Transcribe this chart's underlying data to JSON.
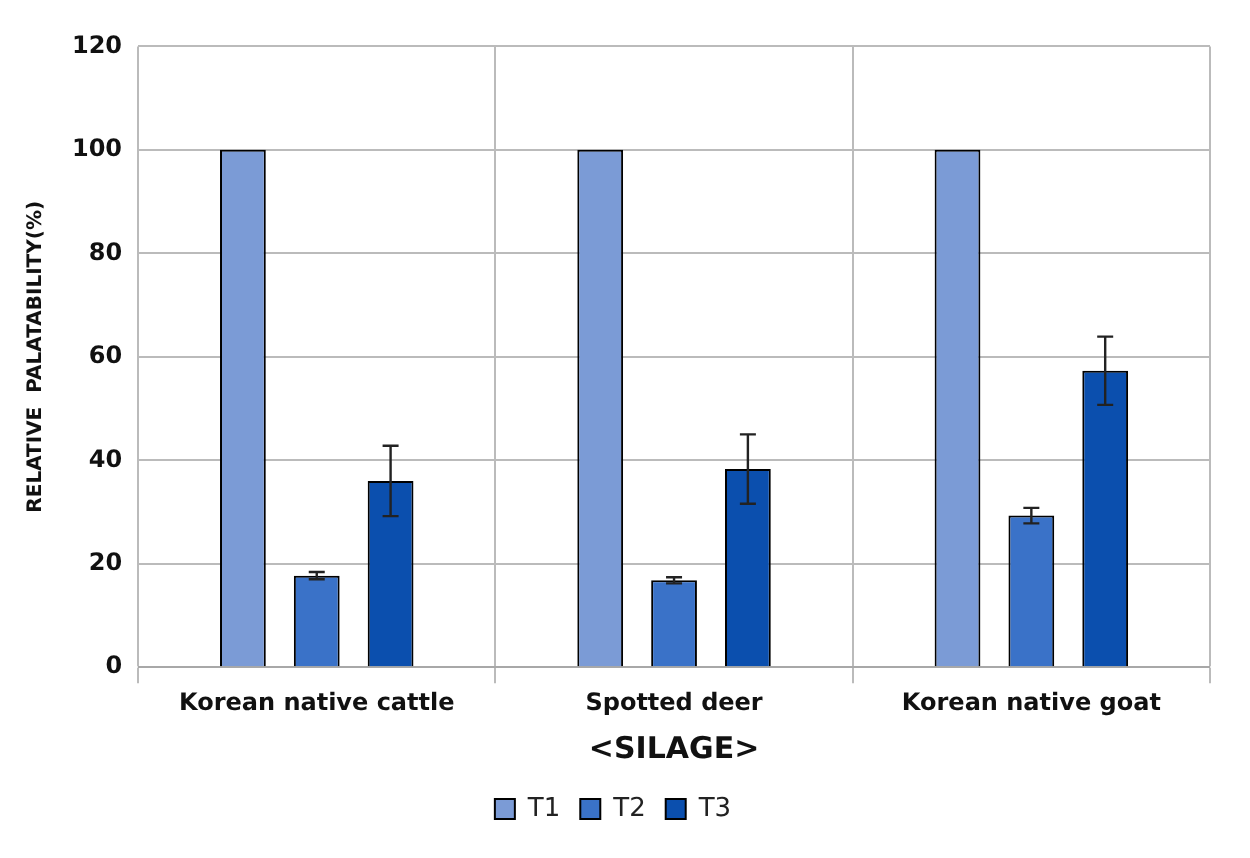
{
  "chart_data": {
    "type": "bar",
    "xlabel": "<SILAGE>",
    "ylabel": "RELATIVE  PALATABILITY(%)",
    "categories": [
      "Korean native cattle",
      "Spotted deer",
      "Korean native goat"
    ],
    "series": [
      {
        "name": "T1",
        "color": "#7b9bd6",
        "values": [
          100,
          100,
          100
        ]
      },
      {
        "name": "T2",
        "color": "#3a72c8",
        "values": [
          17.7,
          16.8,
          29.3
        ],
        "errors": [
          0.7,
          0.6,
          1.5
        ]
      },
      {
        "name": "T3",
        "color": "#0b4fae",
        "values": [
          36,
          38.3,
          57.3
        ],
        "errors": [
          6.8,
          6.7,
          6.6
        ]
      }
    ],
    "ylim": [
      0,
      120
    ],
    "yticks": [
      0,
      20,
      40,
      60,
      80,
      100,
      120
    ],
    "grid": true,
    "legend": "bottom"
  }
}
